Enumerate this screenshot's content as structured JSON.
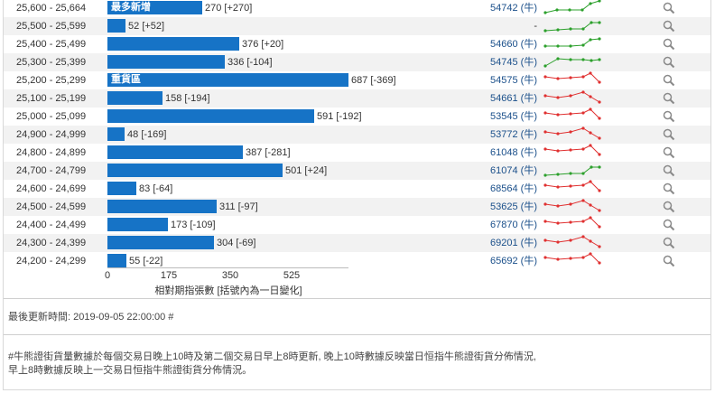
{
  "rows": [
    {
      "range": "25,600 - 25,664",
      "value": 270,
      "change": "[+270]",
      "tag": "最多新增",
      "code": "54742 (牛)",
      "trend": "up"
    },
    {
      "range": "25,500 - 25,599",
      "value": 52,
      "change": "[+52]",
      "tag": "",
      "code": "-",
      "trend": "up"
    },
    {
      "range": "25,400 - 25,499",
      "value": 376,
      "change": "[+20]",
      "tag": "",
      "code": "54660 (牛)",
      "trend": "up"
    },
    {
      "range": "25,300 - 25,399",
      "value": 336,
      "change": "[-104]",
      "tag": "",
      "code": "54745 (牛)",
      "trend": "up"
    },
    {
      "range": "25,200 - 25,299",
      "value": 687,
      "change": "[-369]",
      "tag": "重貨區",
      "code": "54575 (牛)",
      "trend": "down"
    },
    {
      "range": "25,100 - 25,199",
      "value": 158,
      "change": "[-194]",
      "tag": "",
      "code": "54661 (牛)",
      "trend": "down"
    },
    {
      "range": "25,000 - 25,099",
      "value": 591,
      "change": "[-192]",
      "tag": "",
      "code": "53545 (牛)",
      "trend": "down"
    },
    {
      "range": "24,900 - 24,999",
      "value": 48,
      "change": "[-169]",
      "tag": "",
      "code": "53772 (牛)",
      "trend": "down"
    },
    {
      "range": "24,800 - 24,899",
      "value": 387,
      "change": "[-281]",
      "tag": "",
      "code": "61048 (牛)",
      "trend": "down"
    },
    {
      "range": "24,700 - 24,799",
      "value": 501,
      "change": "[+24]",
      "tag": "",
      "code": "61074 (牛)",
      "trend": "up"
    },
    {
      "range": "24,600 - 24,699",
      "value": 83,
      "change": "[-64]",
      "tag": "",
      "code": "68564 (牛)",
      "trend": "down"
    },
    {
      "range": "24,500 - 24,599",
      "value": 311,
      "change": "[-97]",
      "tag": "",
      "code": "53625 (牛)",
      "trend": "down"
    },
    {
      "range": "24,400 - 24,499",
      "value": 173,
      "change": "[-109]",
      "tag": "",
      "code": "67870 (牛)",
      "trend": "down"
    },
    {
      "range": "24,300 - 24,399",
      "value": 304,
      "change": "[-69]",
      "tag": "",
      "code": "69201 (牛)",
      "trend": "down"
    },
    {
      "range": "24,200 - 24,299",
      "value": 55,
      "change": "[-22]",
      "tag": "",
      "code": "65692 (牛)",
      "trend": "down"
    }
  ],
  "axis": {
    "ticks": [
      "0",
      "175",
      "350",
      "525"
    ],
    "max": 700,
    "label": "相對期指張數 [括號內為一日變化]"
  },
  "colors": {
    "bar": "#1673c6",
    "up": "#2ca02c",
    "down": "#e03030",
    "code": "#1a4f8a"
  },
  "icons": {
    "row_action": "search-icon"
  },
  "footer": {
    "updated": "最後更新時間: 2019-09-05 22:00:00 #",
    "note_line1": "#牛熊證街貨量數據於每個交易日晚上10時及第二個交易日早上8時更新, 晚上10時數據反映當日恒指牛熊證街貨分佈情況,",
    "note_line2": "早上8時數據反映上一交易日恒指牛熊證街貨分佈情況。"
  }
}
